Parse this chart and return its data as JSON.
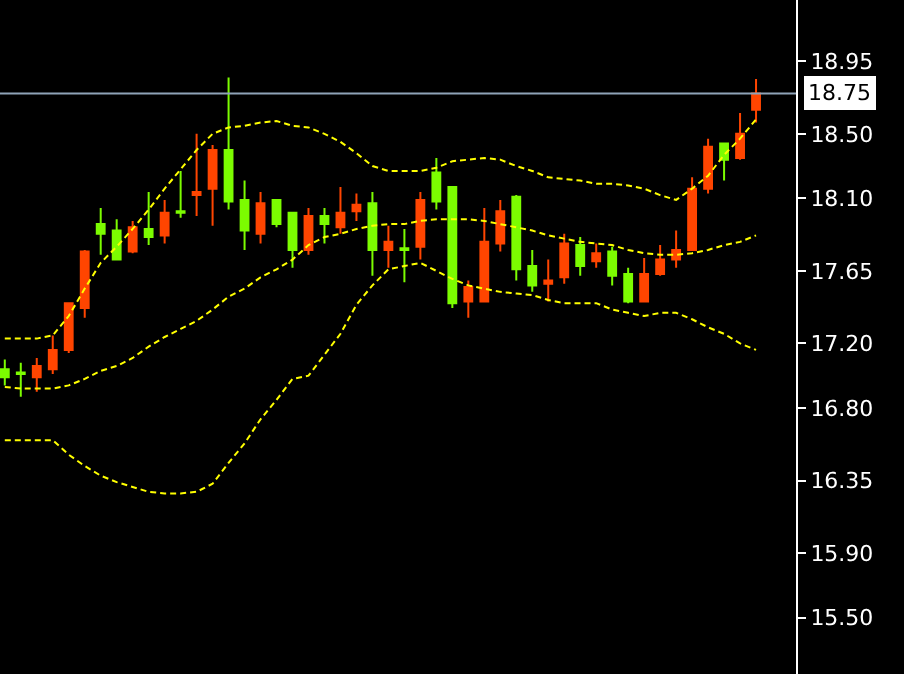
{
  "chart_data": {
    "type": "candlestick",
    "categories": [
      null,
      null,
      null,
      null,
      null,
      null,
      null,
      null,
      null,
      null,
      null,
      null,
      null,
      null,
      null,
      null,
      null,
      null,
      null,
      null,
      null,
      null,
      null,
      null,
      null,
      null,
      null,
      null,
      null,
      null,
      null,
      null,
      null,
      null,
      null,
      null,
      null,
      null,
      null,
      null,
      null,
      null,
      null,
      null,
      null,
      null,
      null,
      null
    ],
    "ohlc": [
      [
        17.04,
        17.1,
        16.94,
        16.99
      ],
      [
        17.02,
        17.08,
        16.87,
        17.01
      ],
      [
        16.99,
        17.11,
        16.9,
        17.06
      ],
      [
        17.04,
        17.25,
        17.01,
        17.16
      ],
      [
        17.16,
        17.45,
        17.14,
        17.45
      ],
      [
        17.42,
        17.78,
        17.36,
        17.77
      ],
      [
        17.94,
        18.04,
        17.75,
        17.88
      ],
      [
        17.9,
        17.97,
        17.72,
        17.72
      ],
      [
        17.77,
        17.96,
        17.76,
        17.92
      ],
      [
        17.91,
        18.14,
        17.81,
        17.86
      ],
      [
        17.87,
        18.09,
        17.82,
        18.01
      ],
      [
        18.02,
        18.27,
        17.98,
        18.01
      ],
      [
        18.12,
        18.5,
        17.99,
        18.14
      ],
      [
        18.16,
        18.43,
        17.93,
        18.4
      ],
      [
        18.4,
        18.85,
        18.03,
        18.08
      ],
      [
        18.09,
        18.21,
        17.78,
        17.9
      ],
      [
        17.88,
        18.14,
        17.82,
        18.07
      ],
      [
        18.09,
        18.09,
        17.92,
        17.94
      ],
      [
        18.01,
        18.01,
        17.67,
        17.78
      ],
      [
        17.78,
        18.04,
        17.75,
        17.99
      ],
      [
        17.99,
        18.04,
        17.82,
        17.94
      ],
      [
        17.92,
        18.17,
        17.88,
        18.01
      ],
      [
        18.02,
        18.13,
        17.96,
        18.06
      ],
      [
        18.07,
        18.14,
        17.62,
        17.78
      ],
      [
        17.78,
        17.93,
        17.67,
        17.83
      ],
      [
        17.79,
        17.91,
        17.58,
        17.78
      ],
      [
        17.8,
        18.14,
        17.72,
        18.09
      ],
      [
        18.26,
        18.35,
        18.03,
        18.08
      ],
      [
        18.17,
        18.17,
        17.42,
        17.45
      ],
      [
        17.46,
        17.59,
        17.36,
        17.55
      ],
      [
        17.46,
        18.04,
        17.46,
        17.83
      ],
      [
        17.82,
        18.09,
        17.77,
        18.02
      ],
      [
        18.11,
        18.12,
        17.59,
        17.66
      ],
      [
        17.68,
        17.78,
        17.52,
        17.56
      ],
      [
        17.57,
        17.72,
        17.46,
        17.59
      ],
      [
        17.61,
        17.88,
        17.57,
        17.82
      ],
      [
        17.81,
        17.86,
        17.62,
        17.68
      ],
      [
        17.71,
        17.82,
        17.67,
        17.76
      ],
      [
        17.77,
        17.8,
        17.56,
        17.62
      ],
      [
        17.63,
        17.67,
        17.45,
        17.46
      ],
      [
        17.46,
        17.73,
        17.46,
        17.63
      ],
      [
        17.63,
        17.81,
        17.62,
        17.72
      ],
      [
        17.72,
        17.9,
        17.67,
        17.78
      ],
      [
        17.78,
        18.23,
        17.78,
        18.16
      ],
      [
        18.16,
        18.47,
        18.13,
        18.42
      ],
      [
        18.44,
        18.44,
        18.21,
        18.34
      ],
      [
        18.35,
        18.63,
        18.34,
        18.5
      ],
      [
        18.65,
        18.84,
        18.57,
        18.75
      ]
    ],
    "colors": [
      "#7cfc00",
      "#7cfc00",
      "#ff4500",
      "#ff4500",
      "#ff4500",
      "#ff4500",
      "#7cfc00",
      "#7cfc00",
      "#ff4500",
      "#7cfc00",
      "#ff4500",
      "#7cfc00",
      "#ff4500",
      "#ff4500",
      "#7cfc00",
      "#7cfc00",
      "#ff4500",
      "#7cfc00",
      "#7cfc00",
      "#ff4500",
      "#7cfc00",
      "#ff4500",
      "#ff4500",
      "#7cfc00",
      "#ff4500",
      "#7cfc00",
      "#ff4500",
      "#7cfc00",
      "#7cfc00",
      "#ff4500",
      "#ff4500",
      "#ff4500",
      "#7cfc00",
      "#7cfc00",
      "#ff4500",
      "#ff4500",
      "#7cfc00",
      "#ff4500",
      "#7cfc00",
      "#7cfc00",
      "#ff4500",
      "#ff4500",
      "#ff4500",
      "#ff4500",
      "#ff4500",
      "#7cfc00",
      "#ff4500",
      "#ff4500"
    ],
    "series": [
      {
        "type": "line",
        "color": "#ffff00",
        "line_style": "dashed",
        "values": [
          17.23,
          17.23,
          17.23,
          17.25,
          17.37,
          17.54,
          17.7,
          17.8,
          17.91,
          18.03,
          18.16,
          18.28,
          18.4,
          18.5,
          18.54,
          18.55,
          18.57,
          18.58,
          18.55,
          18.54,
          18.5,
          18.45,
          18.38,
          18.3,
          18.27,
          18.27,
          18.27,
          18.29,
          18.33,
          18.34,
          18.35,
          18.34,
          18.3,
          18.27,
          18.23,
          18.22,
          18.21,
          18.19,
          18.19,
          18.18,
          18.16,
          18.12,
          18.09,
          18.16,
          18.24,
          18.37,
          18.47,
          18.59
        ]
      },
      {
        "type": "line",
        "color": "#ffff00",
        "line_style": "dashed",
        "values": [
          16.93,
          16.92,
          16.92,
          16.92,
          16.94,
          16.98,
          17.03,
          17.06,
          17.11,
          17.18,
          17.24,
          17.29,
          17.34,
          17.41,
          17.49,
          17.54,
          17.61,
          17.66,
          17.72,
          17.81,
          17.86,
          17.88,
          17.91,
          17.93,
          17.94,
          17.94,
          17.96,
          17.97,
          17.97,
          17.97,
          17.96,
          17.94,
          17.92,
          17.9,
          17.87,
          17.85,
          17.83,
          17.82,
          17.81,
          17.78,
          17.76,
          17.75,
          17.75,
          17.76,
          17.78,
          17.81,
          17.83,
          17.87
        ]
      },
      {
        "type": "line",
        "color": "#ffff00",
        "line_style": "dashed",
        "values": [
          16.6,
          16.6,
          16.6,
          16.6,
          16.51,
          16.44,
          16.38,
          16.34,
          16.31,
          16.28,
          16.27,
          16.27,
          16.28,
          16.33,
          16.46,
          16.58,
          16.73,
          16.85,
          16.98,
          17.0,
          17.13,
          17.26,
          17.44,
          17.56,
          17.66,
          17.68,
          17.7,
          17.65,
          17.6,
          17.56,
          17.54,
          17.52,
          17.51,
          17.5,
          17.47,
          17.45,
          17.45,
          17.45,
          17.41,
          17.39,
          17.37,
          17.39,
          17.39,
          17.35,
          17.3,
          17.26,
          17.2,
          17.16
        ]
      }
    ],
    "ylim": [
      15.15,
      19.33
    ],
    "yticks": [
      {
        "value": 15.5,
        "label": "15.50"
      },
      {
        "value": 15.9,
        "label": "15.90"
      },
      16.35,
      {
        "value": 16.8,
        "label": "16.80"
      },
      {
        "value": 17.2,
        "label": "17.20"
      },
      17.65,
      {
        "value": 18.1,
        "label": "18.10"
      },
      {
        "value": 18.5,
        "label": "18.50"
      },
      18.95
    ],
    "ref_lines": [
      {
        "axis": "y",
        "value": 18.75,
        "label": "18.75",
        "color": "#8fa3b8"
      }
    ],
    "grid": false,
    "marker": "none",
    "tick_labels": "y"
  }
}
